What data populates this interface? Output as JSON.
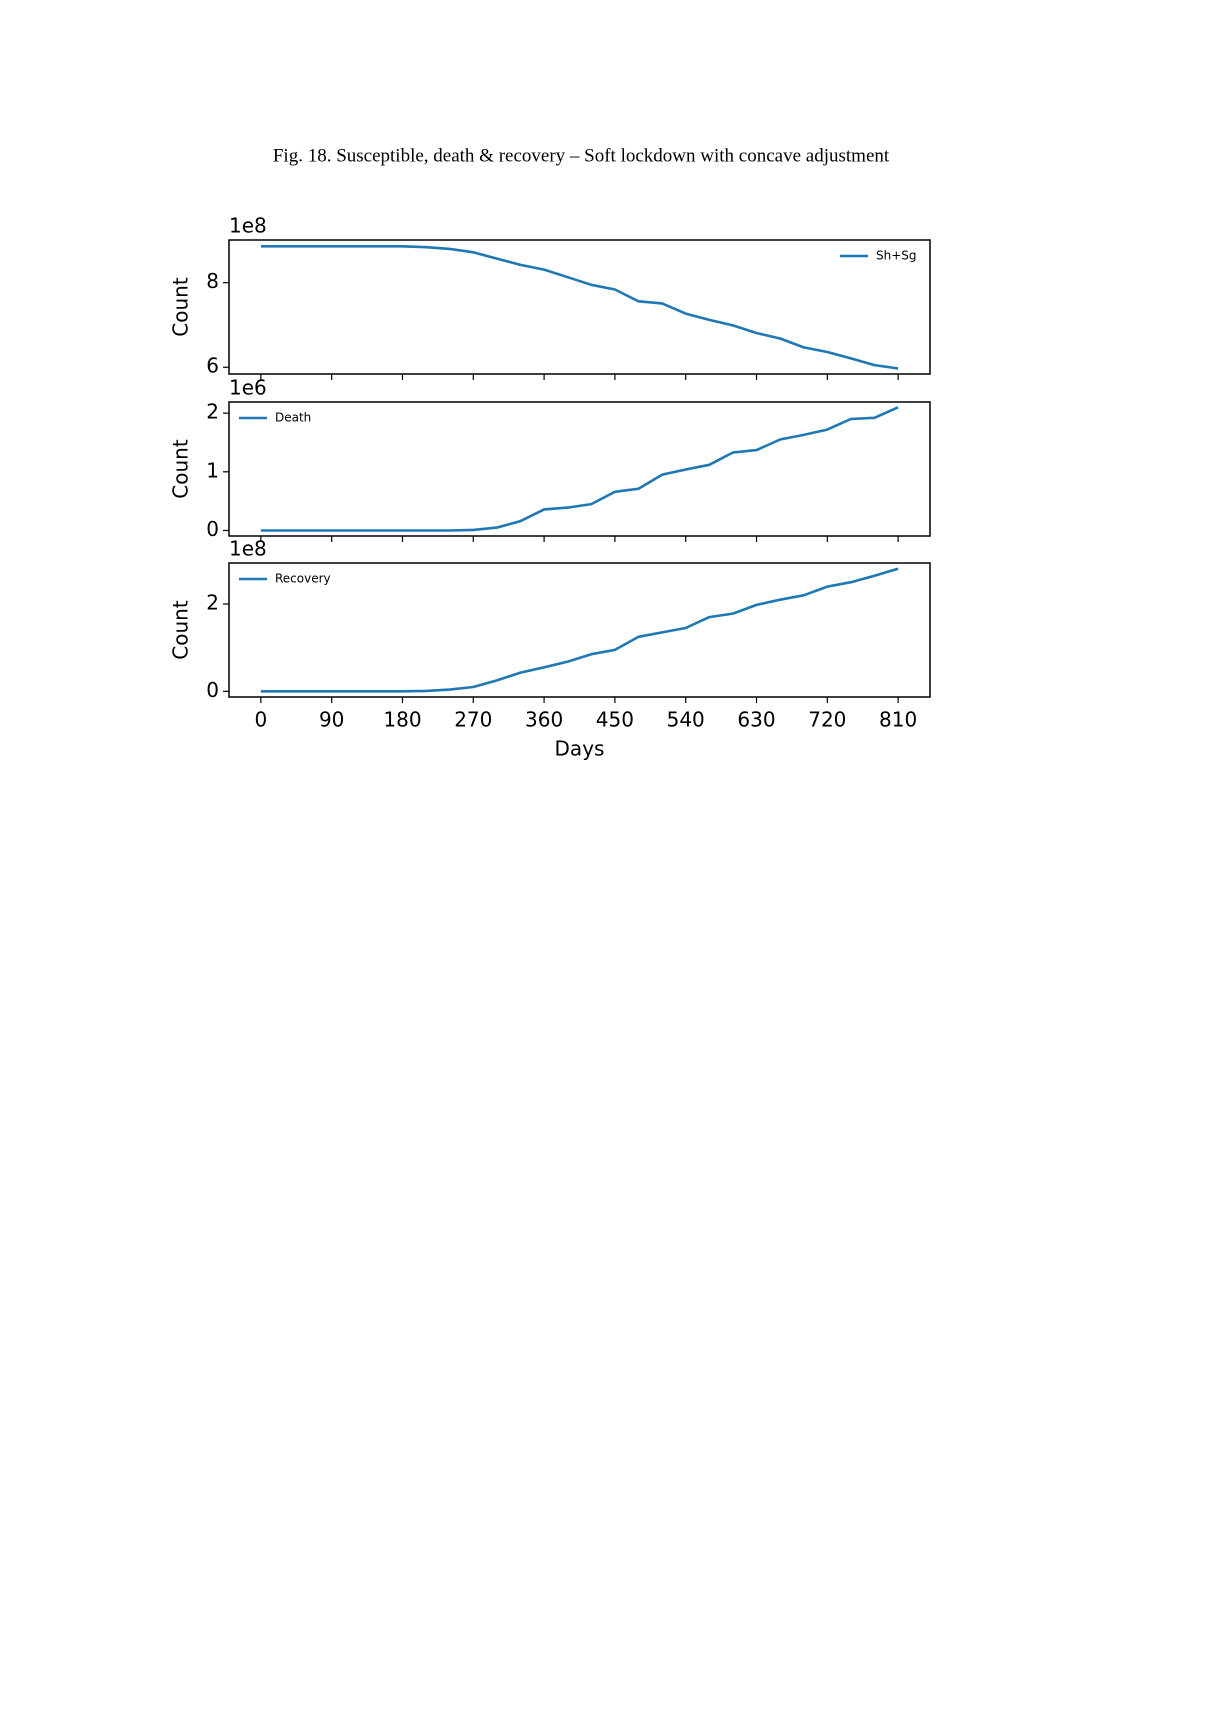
{
  "caption": "Fig. 18. Susceptible, death & recovery – Soft lockdown with concave adjustment",
  "chart_data": [
    {
      "type": "line",
      "ylabel": "Count",
      "offset_text": "1e8",
      "legend": "upper right",
      "x": [
        0,
        30,
        60,
        90,
        120,
        150,
        180,
        210,
        240,
        270,
        300,
        330,
        360,
        390,
        420,
        450,
        480,
        510,
        540,
        570,
        600,
        630,
        660,
        690,
        720,
        750,
        780,
        810
      ],
      "series": [
        {
          "name": "Sh+Sg",
          "color": "#1f77b4",
          "values": [
            8.86,
            8.86,
            8.86,
            8.86,
            8.86,
            8.86,
            8.86,
            8.84,
            8.8,
            8.72,
            8.57,
            8.42,
            8.31,
            8.13,
            7.95,
            7.84,
            7.56,
            7.51,
            7.27,
            7.12,
            6.99,
            6.81,
            6.68,
            6.47,
            6.36,
            6.21,
            6.05,
            5.97
          ]
        }
      ],
      "xlim": [
        -40.5,
        850.5
      ],
      "ylim": [
        5.84,
        9.01
      ],
      "yticks": [
        6,
        8
      ]
    },
    {
      "type": "line",
      "ylabel": "Count",
      "offset_text": "1e6",
      "legend": "upper left",
      "x": [
        0,
        30,
        60,
        90,
        120,
        150,
        180,
        210,
        240,
        270,
        300,
        330,
        360,
        390,
        420,
        450,
        480,
        510,
        540,
        570,
        600,
        630,
        660,
        690,
        720,
        750,
        780,
        810
      ],
      "series": [
        {
          "name": "Death",
          "color": "#1f77b4",
          "values": [
            0,
            0,
            0,
            0,
            0,
            0,
            0,
            0,
            0,
            0.01,
            0.05,
            0.16,
            0.36,
            0.39,
            0.45,
            0.66,
            0.71,
            0.95,
            1.04,
            1.12,
            1.33,
            1.37,
            1.55,
            1.63,
            1.72,
            1.9,
            1.92,
            2.1
          ]
        }
      ],
      "xlim": [
        -40.5,
        850.5
      ],
      "ylim": [
        -0.094,
        2.19
      ],
      "yticks": [
        0,
        1,
        2
      ]
    },
    {
      "type": "line",
      "ylabel": "Count",
      "xlabel": "Days",
      "offset_text": "1e8",
      "legend": "upper left",
      "x": [
        0,
        30,
        60,
        90,
        120,
        150,
        180,
        210,
        240,
        270,
        300,
        330,
        360,
        390,
        420,
        450,
        480,
        510,
        540,
        570,
        600,
        630,
        660,
        690,
        720,
        750,
        780,
        810
      ],
      "series": [
        {
          "name": "Recovery",
          "color": "#1f77b4",
          "values": [
            0,
            0,
            0,
            0,
            0,
            0,
            0,
            0.01,
            0.04,
            0.1,
            0.25,
            0.43,
            0.55,
            0.68,
            0.85,
            0.95,
            1.25,
            1.35,
            1.45,
            1.7,
            1.78,
            1.98,
            2.1,
            2.2,
            2.4,
            2.5,
            2.65,
            2.81
          ]
        }
      ],
      "xlim": [
        -40.5,
        850.5
      ],
      "ylim": [
        -0.13,
        2.94
      ],
      "yticks": [
        0,
        2
      ],
      "xticks": [
        0,
        90,
        180,
        270,
        360,
        450,
        540,
        630,
        720,
        810
      ]
    }
  ]
}
